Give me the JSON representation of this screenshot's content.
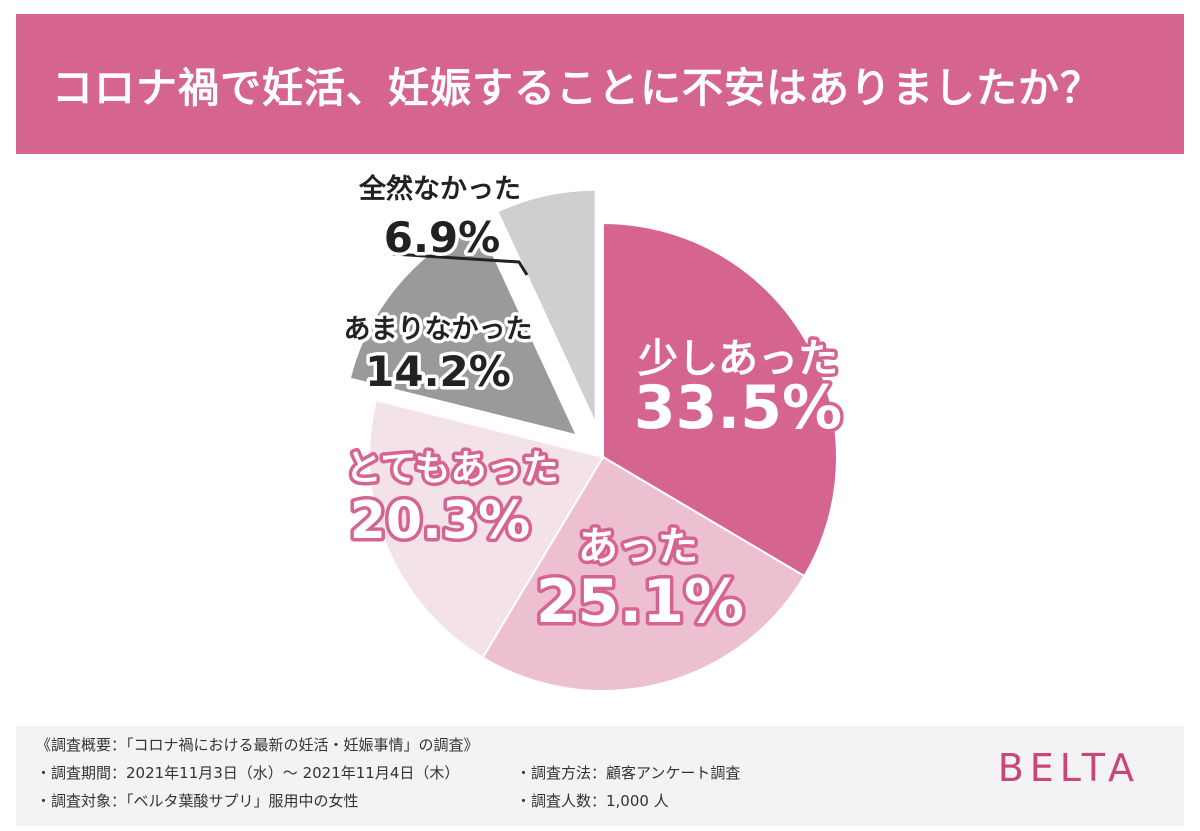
{
  "header": {
    "title": "コロナ禍で妊活、妊娠することに不安はありましたか？"
  },
  "chart_data": {
    "type": "pie",
    "title": "コロナ禍で妊活、妊娠することに不安はありましたか？",
    "slices": [
      {
        "label": "少しあった",
        "value": 33.5,
        "value_label": "33.5%",
        "color": "#d66491",
        "text_color": "#ffffff",
        "outline": "#d66491"
      },
      {
        "label": "あった",
        "value": 25.1,
        "value_label": "25.1%",
        "color": "#ecbfd1",
        "text_color": "#ffffff",
        "outline": "#d66491"
      },
      {
        "label": "とてもあった",
        "value": 20.3,
        "value_label": "20.3%",
        "color": "#f4e2e9",
        "text_color": "#ffffff",
        "outline": "#d66491"
      },
      {
        "label": "あまりなかった",
        "value": 14.2,
        "value_label": "14.2%",
        "color": "#9a9a9a",
        "text_color": "#222222",
        "outline": "#ffffff"
      },
      {
        "label": "全然なかった",
        "value": 6.9,
        "value_label": "6.9%",
        "color": "#cfcfcf",
        "text_color": "#222222",
        "outline": "#ffffff"
      }
    ]
  },
  "footer": {
    "summary": "《調査概要：「コロナ禍における最新の妊活・妊娠事情」の調査》",
    "period": "・調査期間：2021年11月3日（水）～ 2021年11月4日（木）",
    "target": "・調査対象：「ベルタ葉酸サプリ」服用中の女性",
    "method": "・調査方法：顧客アンケート調査",
    "count": "・調査人数：1,000 人",
    "logo": "BELTA"
  }
}
